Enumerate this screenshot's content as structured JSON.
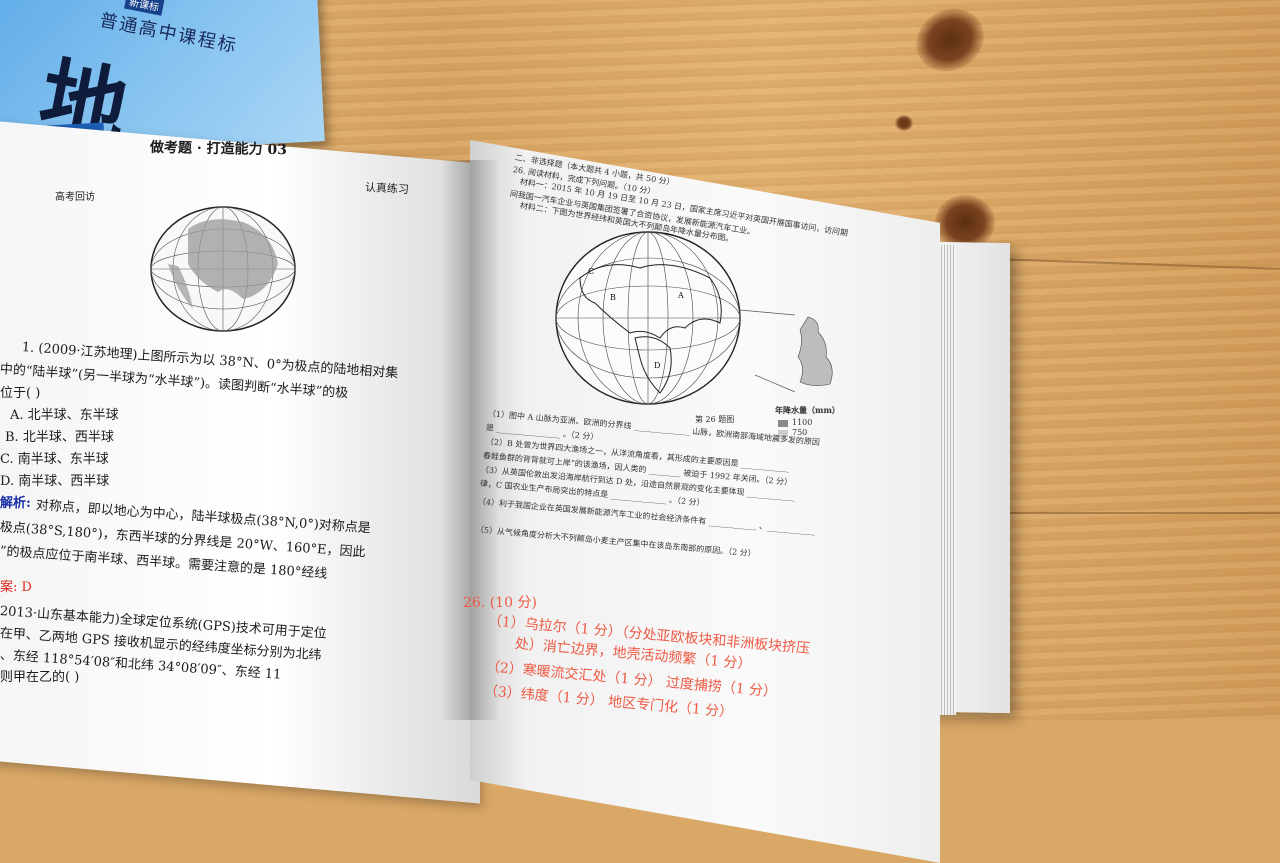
{
  "blue_book": {
    "series": "普通高中课程标",
    "badge": "新课标",
    "char": "地"
  },
  "left_page": {
    "title": "做考题 · 打造能力 03",
    "header_left": "高考回访",
    "header_right": "认真练习",
    "q1_line1": "1. (2009·江苏地理)上图所示为以 38°N、0°为极点的陆地相对集",
    "q1_line2": "中的“陆半球”(另一半球为“水半球”)。读图判断“水半球”的极",
    "q1_line3": "位于(      )",
    "opt_a": "A. 北半球、东半球",
    "opt_b": "B. 北半球、西半球",
    "opt_c": "C. 南半球、东半球",
    "opt_d": "D. 南半球、西半球",
    "analysis_label": "解析:",
    "analysis_1": "对称点，即以地心为中心，陆半球极点(38°N,0°)对称点是",
    "analysis_2": "极点(38°S,180°)，东西半球的分界线是 20°W、160°E，因此",
    "analysis_3": "”的极点应位于南半球、西半球。需要注意的是 180°经线",
    "answer_label": "案: D",
    "q2_line1": "2013·山东基本能力)全球定位系统(GPS)技术可用于定位",
    "q2_line2": "在甲、乙两地 GPS 接收机显示的经纬度坐标分别为北纬",
    "q2_line3": "、东经 118°54′08″和北纬 34°08′09″、东经 11",
    "q2_line4": "则甲在乙的(      )"
  },
  "right_page": {
    "intro_1": "二、非选择题（本大题共 4 小题，共 50 分）",
    "intro_2": "26. 阅读材料，完成下列问题。（10 分）",
    "intro_3": "材料一：2015 年 10 月 19 日至 10 月 23 日，国家主席习近平对英国开展国事访问，访问期",
    "intro_4": "间我国一汽车企业与英国集团签署了合资协议，发展新能源汽车工业。",
    "intro_5": "材料二：下图为世界经纬和英国大不列颠岛年降水量分布图。",
    "figure_caption": "第 26 题图",
    "legend_title": "年降水量（mm）",
    "legend_1": "1100",
    "legend_2": "750",
    "q_1": "（1）图中 A 山脉为亚洲、欧洲的分界线 ______________ 山脉，欧洲南部海域地震多发的原因",
    "q_1b": "是 ________________ 。（2 分）",
    "q_2": "（2）B 处曾为世界四大渔场之一，从洋流角度看，其形成的主要原因是 ____________",
    "q_2b": "春鲑鱼群的背背就可上岸”的该渔场，因人类的 ________ 被迫于 1992 年关闭。（2 分）",
    "q_3": "（3）从英国伦敦出发沿海岸航行到达 D 处，沿途自然景观的变化主要体现 ____________",
    "q_3b": "律，C 国农业生产布局突出的特点是 ______________ 。（2 分）",
    "q_4": "（4）利于我国企业在英国发展新能源汽车工业的社会经济条件有 ____________ 、____________",
    "q_5": "（5）从气候角度分析大不列颠岛小麦主产区集中在该岛东南部的原因。（2 分）",
    "ans_head": "26. (10 分)",
    "ans_1": "（1）乌拉尔（1 分）（分处亚欧板块和非洲板块挤压",
    "ans_1b": "处）消亡边界，地壳活动频繁（1 分）",
    "ans_2": "（2）寒暖流交汇处（1 分）       过度捕捞（1 分）",
    "ans_3": "（3）纬度（1 分）    地区专门化（1 分）"
  }
}
